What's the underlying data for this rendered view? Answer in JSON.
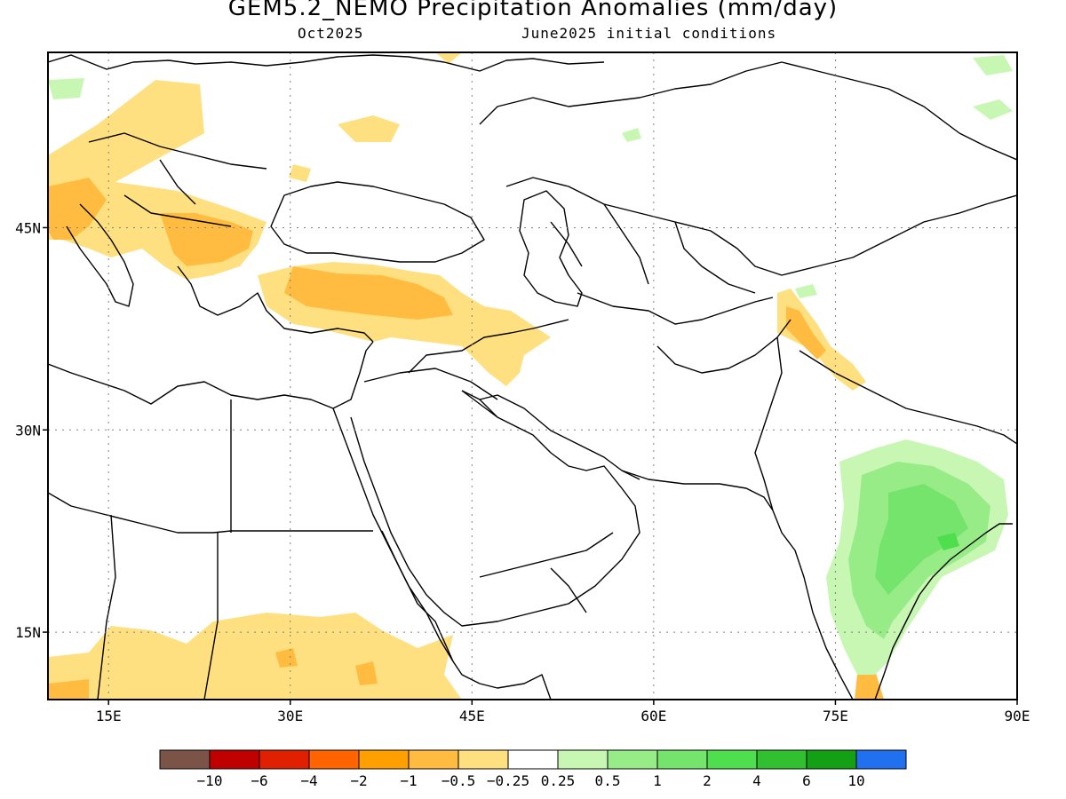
{
  "title": "GEM5.2_NEMO Precipitation Anomalies (mm/day)",
  "subtitle_left": "Oct2025",
  "subtitle_right": "June2025 initial conditions",
  "map": {
    "lon_range": [
      10,
      90
    ],
    "lat_range": [
      10,
      58
    ],
    "lon_ticks": [
      {
        "value": 15,
        "label": "15E"
      },
      {
        "value": 30,
        "label": "30E"
      },
      {
        "value": 45,
        "label": "45E"
      },
      {
        "value": 60,
        "label": "60E"
      },
      {
        "value": 75,
        "label": "75E"
      },
      {
        "value": 90,
        "label": "90E"
      }
    ],
    "lat_ticks": [
      {
        "value": 45,
        "label": "45N"
      },
      {
        "value": 30,
        "label": "30N"
      },
      {
        "value": 15,
        "label": "15N"
      }
    ],
    "gridlines": "dotted"
  },
  "colorbar": {
    "colors": [
      "#7b5447",
      "#c00000",
      "#e02000",
      "#ff6400",
      "#ffa000",
      "#ffbc40",
      "#ffe080",
      "#ffffff",
      "#c8f7b4",
      "#98ec88",
      "#74e46c",
      "#4ede4e",
      "#30c030",
      "#14a014",
      "#2070f0"
    ],
    "labels": [
      "−10",
      "−6",
      "−4",
      "−2",
      "−1",
      "−0.5",
      "−0.25",
      "0.25",
      "0.5",
      "1",
      "2",
      "4",
      "6",
      "10"
    ]
  },
  "anomaly_colors": {
    "dry_light": "#ffe080",
    "dry_moderate": "#ffbc40",
    "wet_light": "#c8f7b4",
    "wet_moderate": "#98ec88",
    "wet_strong": "#74e46c",
    "wet_stronger": "#4ede4e"
  }
}
